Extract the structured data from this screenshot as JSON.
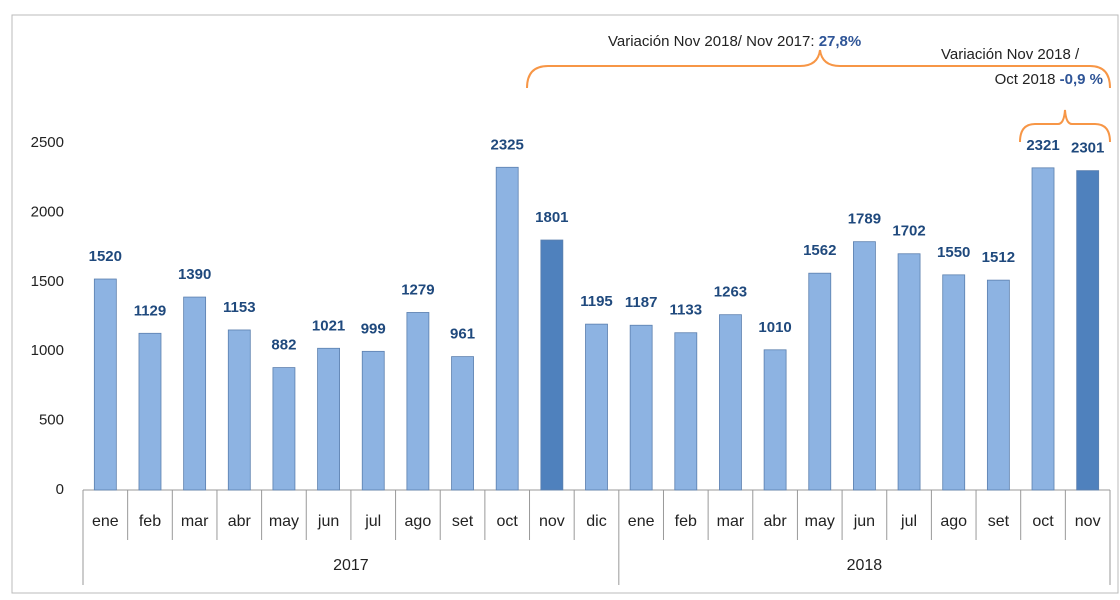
{
  "chart_data": {
    "type": "bar",
    "groups": [
      {
        "label": "2017",
        "categories": [
          "ene",
          "feb",
          "mar",
          "abr",
          "may",
          "jun",
          "jul",
          "ago",
          "set",
          "oct",
          "nov",
          "dic"
        ],
        "values": [
          1520,
          1129,
          1390,
          1153,
          882,
          1021,
          999,
          1279,
          961,
          2325,
          1801,
          1195
        ],
        "colors": [
          "#8db3e2",
          "#8db3e2",
          "#8db3e2",
          "#8db3e2",
          "#8db3e2",
          "#8db3e2",
          "#8db3e2",
          "#8db3e2",
          "#8db3e2",
          "#8db3e2",
          "#4f81bd",
          "#8db3e2"
        ]
      },
      {
        "label": "2018",
        "categories": [
          "ene",
          "feb",
          "mar",
          "abr",
          "may",
          "jun",
          "jul",
          "ago",
          "set",
          "oct",
          "nov"
        ],
        "values": [
          1187,
          1133,
          1263,
          1010,
          1562,
          1789,
          1702,
          1550,
          1512,
          2321,
          2301
        ],
        "colors": [
          "#8db3e2",
          "#8db3e2",
          "#8db3e2",
          "#8db3e2",
          "#8db3e2",
          "#8db3e2",
          "#8db3e2",
          "#8db3e2",
          "#8db3e2",
          "#8db3e2",
          "#4f81bd"
        ]
      }
    ],
    "ylim": [
      0,
      2500
    ],
    "yticks": [
      0,
      500,
      1000,
      1500,
      2000,
      2500
    ],
    "grid": false,
    "annotations": [
      {
        "text": "Variación Nov 2018/ Nov 2017: ",
        "value_text": "27,8%"
      },
      {
        "text": "Variación  Nov 2018 /",
        "text2": "Oct 2018 ",
        "value_text": "-0,9 %"
      }
    ]
  }
}
